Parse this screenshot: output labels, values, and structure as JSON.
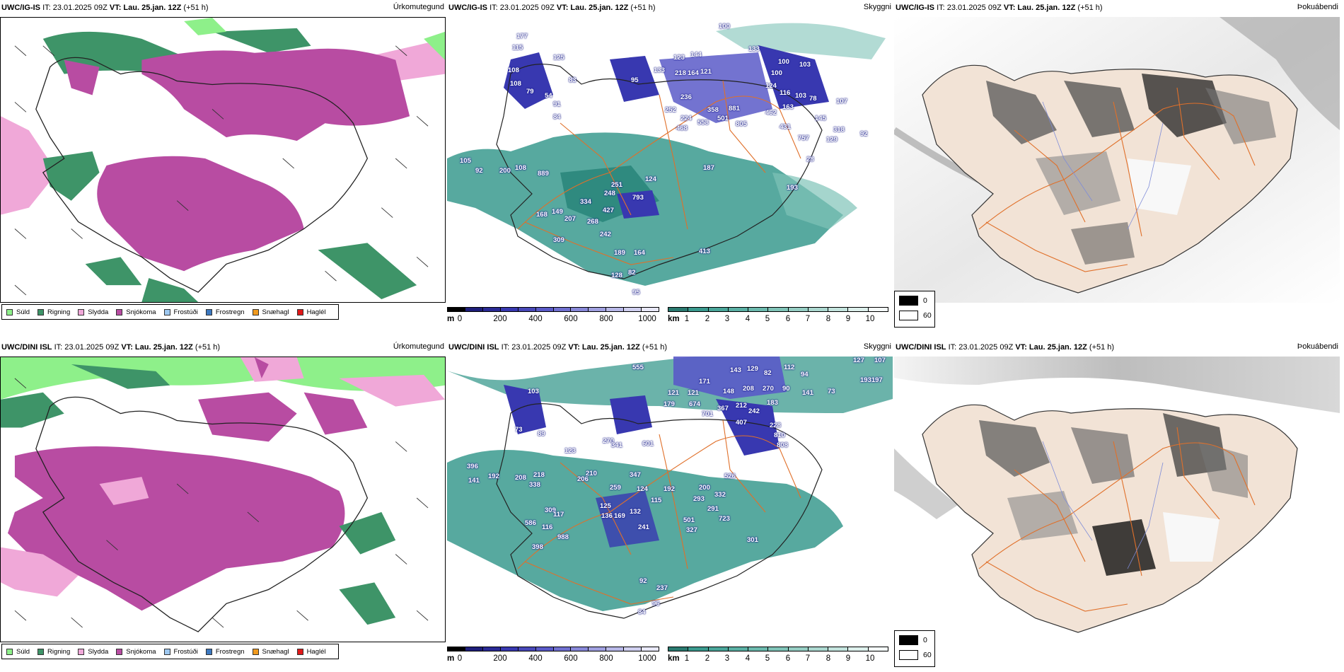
{
  "rows": [
    {
      "model": "UWC/IG-IS",
      "it": "IT: 23.01.2025 09Z",
      "vt_label": "VT:",
      "vt_value": "Lau. 25.jan. 12Z",
      "lead": "(+51 h)",
      "labels": [
        "100",
        "177",
        "125",
        "115",
        "108",
        "108",
        "79",
        "54",
        "91",
        "84",
        "83",
        "95",
        "133",
        "123",
        "144",
        "121",
        "218",
        "164",
        "133",
        "100",
        "103",
        "100",
        "124",
        "116",
        "103",
        "78",
        "163",
        "462",
        "431",
        "252",
        "236",
        "224",
        "358",
        "881",
        "805",
        "468",
        "558",
        "501",
        "757",
        "145",
        "129",
        "318",
        "92",
        "107",
        "28",
        "105",
        "92",
        "200",
        "108",
        "889",
        "251",
        "248",
        "793",
        "334",
        "427",
        "149",
        "207",
        "268",
        "168",
        "242",
        "309",
        "189",
        "164",
        "413",
        "128",
        "82",
        "95",
        "124",
        "187",
        "193"
      ]
    },
    {
      "model": "UWC/DINI ISL",
      "it": "IT: 23.01.2025 09Z",
      "vt_label": "VT:",
      "vt_value": "Lau. 25.jan. 12Z",
      "lead": "(+51 h)",
      "labels": [
        "555",
        "143",
        "129",
        "82",
        "112",
        "94",
        "127",
        "107",
        "171",
        "270",
        "90",
        "141",
        "73",
        "193197",
        "121",
        "121",
        "148",
        "208",
        "179",
        "674",
        "701",
        "367",
        "212",
        "242",
        "183",
        "407",
        "228",
        "810",
        "808",
        "103",
        "73",
        "89",
        "123",
        "270",
        "341",
        "601",
        "396",
        "141",
        "192",
        "218",
        "208",
        "338",
        "210",
        "206",
        "347",
        "259",
        "124",
        "192",
        "200",
        "526",
        "115",
        "293",
        "332",
        "291",
        "723",
        "125",
        "136",
        "169",
        "132",
        "501",
        "327",
        "309",
        "117",
        "116",
        "586",
        "988",
        "398",
        "241",
        "301",
        "92",
        "237",
        "96",
        "84"
      ]
    }
  ],
  "panels": {
    "precip": {
      "title": "Úrkomutegund",
      "legend": [
        {
          "label": "Súld",
          "color": "#8ef08a"
        },
        {
          "label": "Rigning",
          "color": "#3e9468"
        },
        {
          "label": "Slydda",
          "color": "#f0a8d8"
        },
        {
          "label": "Snjókoma",
          "color": "#b84ca2"
        },
        {
          "label": "Frostúði",
          "color": "#9ec8f0"
        },
        {
          "label": "Frostregn",
          "color": "#3c78c0"
        },
        {
          "label": "Snæhagl",
          "color": "#f09a1e"
        },
        {
          "label": "Haglél",
          "color": "#e01818"
        }
      ]
    },
    "cloud": {
      "title": "Skyggni",
      "ceiling_unit": "m",
      "ceiling_ticks": [
        "0",
        "200",
        "400",
        "600",
        "800",
        "1000"
      ],
      "vis_unit": "km",
      "vis_ticks": [
        "1",
        "2",
        "3",
        "4",
        "5",
        "6",
        "7",
        "8",
        "9",
        "10"
      ]
    },
    "fog": {
      "title": "Þokuábendi",
      "legend_low": "0",
      "legend_high": "60"
    }
  },
  "colors": {
    "snow": "#b84ca2",
    "rain": "#3e9468",
    "sleet": "#f0a8d8",
    "drizzle": "#8ef08a",
    "teal": "#3a9a8e",
    "blue": "#3838b0",
    "land": "#f2e3d6",
    "road": "#e0702a"
  }
}
